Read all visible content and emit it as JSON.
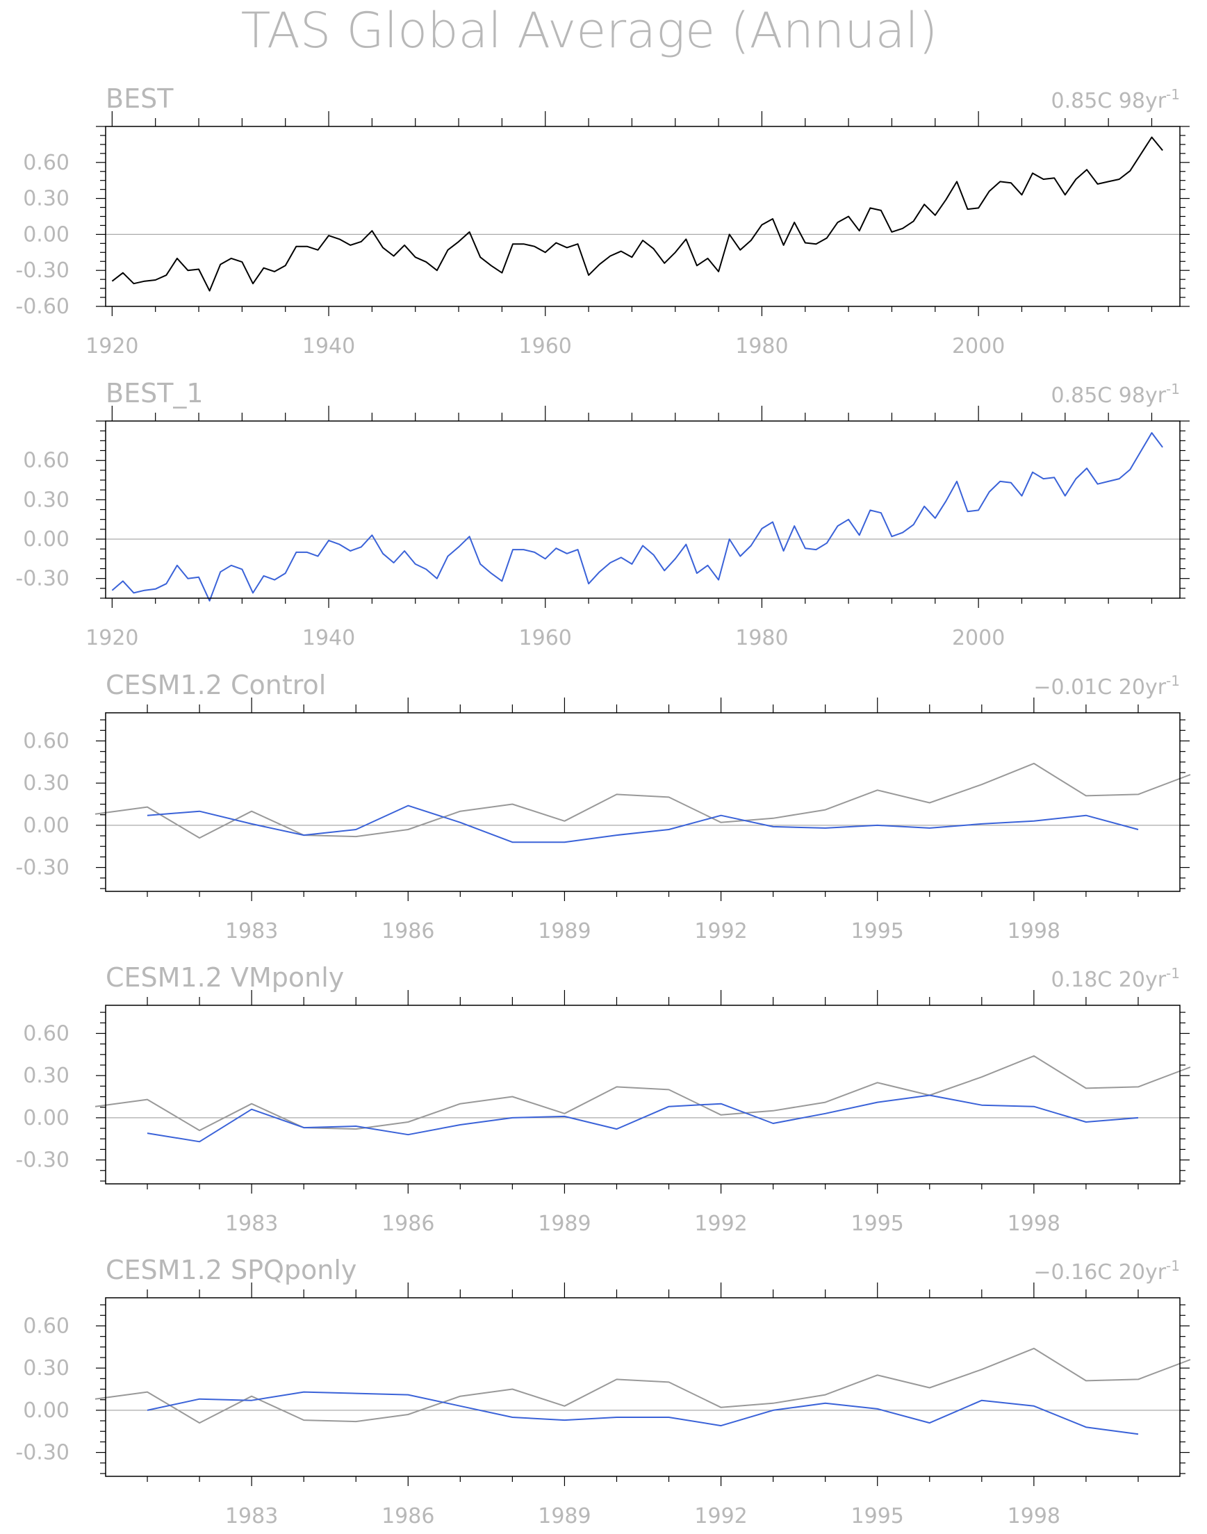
{
  "figure_title": "TAS Global Average (Annual)",
  "colors": {
    "obs_black": "#000000",
    "model_blue": "#3a62d8",
    "obs_reference_gray": "#999999",
    "text_gray": "#b8b8b8",
    "zero_line": "#aaaaaa"
  },
  "chart_data": [
    {
      "type": "line",
      "title": "BEST",
      "trend_label": "0.85C 98yr",
      "trend_exponent": "-1",
      "xlim": [
        1919.4,
        2018.6
      ],
      "ylim": [
        -0.6,
        0.9
      ],
      "yticks": [
        -0.6,
        -0.3,
        0.0,
        0.3,
        0.6
      ],
      "ytick_labels": [
        "-0.60",
        "-0.30",
        "0.00",
        "0.30",
        "0.60"
      ],
      "xticks": [
        1920,
        1940,
        1960,
        1980,
        2000
      ],
      "xtick_labels": [
        "1920",
        "1940",
        "1960",
        "1980",
        "2000"
      ],
      "zero_line": true,
      "series": [
        {
          "color": "#000000",
          "x_start": 1920,
          "values": [
            -0.39,
            -0.32,
            -0.41,
            -0.39,
            -0.38,
            -0.34,
            -0.2,
            -0.3,
            -0.29,
            -0.47,
            -0.25,
            -0.2,
            -0.23,
            -0.41,
            -0.28,
            -0.31,
            -0.26,
            -0.1,
            -0.1,
            -0.13,
            -0.01,
            -0.04,
            -0.09,
            -0.06,
            0.03,
            -0.11,
            -0.18,
            -0.09,
            -0.19,
            -0.23,
            -0.3,
            -0.13,
            -0.06,
            0.02,
            -0.19,
            -0.26,
            -0.32,
            -0.08,
            -0.08,
            -0.1,
            -0.15,
            -0.07,
            -0.11,
            -0.08,
            -0.34,
            -0.25,
            -0.18,
            -0.14,
            -0.19,
            -0.05,
            -0.12,
            -0.24,
            -0.15,
            -0.04,
            -0.26,
            -0.2,
            -0.31,
            0.0,
            -0.13,
            -0.05,
            0.08,
            0.13,
            -0.09,
            0.1,
            -0.07,
            -0.08,
            -0.03,
            0.1,
            0.15,
            0.03,
            0.22,
            0.2,
            0.02,
            0.05,
            0.11,
            0.25,
            0.16,
            0.29,
            0.44,
            0.21,
            0.22,
            0.36,
            0.44,
            0.43,
            0.33,
            0.51,
            0.46,
            0.47,
            0.33,
            0.46,
            0.54,
            0.42,
            0.44,
            0.46,
            0.53,
            0.67,
            0.81,
            0.7
          ]
        }
      ]
    },
    {
      "type": "line",
      "title": "BEST_1",
      "trend_label": "0.85C 98yr",
      "trend_exponent": "-1",
      "xlim": [
        1919.4,
        2018.6
      ],
      "ylim": [
        -0.45,
        0.9
      ],
      "yticks": [
        -0.3,
        0.0,
        0.3,
        0.6
      ],
      "ytick_labels": [
        "-0.30",
        "0.00",
        "0.30",
        "0.60"
      ],
      "xticks": [
        1920,
        1940,
        1960,
        1980,
        2000
      ],
      "xtick_labels": [
        "1920",
        "1940",
        "1960",
        "1980",
        "2000"
      ],
      "zero_line": true,
      "series": [
        {
          "color": "#3a62d8",
          "x_start": 1920,
          "values": [
            -0.39,
            -0.32,
            -0.41,
            -0.39,
            -0.38,
            -0.34,
            -0.2,
            -0.3,
            -0.29,
            -0.47,
            -0.25,
            -0.2,
            -0.23,
            -0.41,
            -0.28,
            -0.31,
            -0.26,
            -0.1,
            -0.1,
            -0.13,
            -0.01,
            -0.04,
            -0.09,
            -0.06,
            0.03,
            -0.11,
            -0.18,
            -0.09,
            -0.19,
            -0.23,
            -0.3,
            -0.13,
            -0.06,
            0.02,
            -0.19,
            -0.26,
            -0.32,
            -0.08,
            -0.08,
            -0.1,
            -0.15,
            -0.07,
            -0.11,
            -0.08,
            -0.34,
            -0.25,
            -0.18,
            -0.14,
            -0.19,
            -0.05,
            -0.12,
            -0.24,
            -0.15,
            -0.04,
            -0.26,
            -0.2,
            -0.31,
            0.0,
            -0.13,
            -0.05,
            0.08,
            0.13,
            -0.09,
            0.1,
            -0.07,
            -0.08,
            -0.03,
            0.1,
            0.15,
            0.03,
            0.22,
            0.2,
            0.02,
            0.05,
            0.11,
            0.25,
            0.16,
            0.29,
            0.44,
            0.21,
            0.22,
            0.36,
            0.44,
            0.43,
            0.33,
            0.51,
            0.46,
            0.47,
            0.33,
            0.46,
            0.54,
            0.42,
            0.44,
            0.46,
            0.53,
            0.67,
            0.81,
            0.7
          ]
        }
      ]
    },
    {
      "type": "line",
      "title": "CESM1.2 Control",
      "trend_label": "−0.01C 20yr",
      "trend_exponent": "-1",
      "xlim": [
        1980.2,
        2000.8
      ],
      "ylim": [
        -0.47,
        0.8
      ],
      "yticks": [
        -0.3,
        0.0,
        0.3,
        0.6
      ],
      "ytick_labels": [
        "-0.30",
        "0.00",
        "0.30",
        "0.60"
      ],
      "xticks": [
        1983,
        1986,
        1989,
        1992,
        1995,
        1998
      ],
      "xtick_labels": [
        "1983",
        "1986",
        "1989",
        "1992",
        "1995",
        "1998"
      ],
      "zero_line": true,
      "series": [
        {
          "color": "#999999",
          "x_start": 1980,
          "values": [
            0.08,
            0.13,
            -0.09,
            0.1,
            -0.07,
            -0.08,
            -0.03,
            0.1,
            0.15,
            0.03,
            0.22,
            0.2,
            0.02,
            0.05,
            0.11,
            0.25,
            0.16,
            0.29,
            0.44,
            0.21,
            0.22,
            0.36
          ]
        },
        {
          "color": "#3a62d8",
          "x_start": 1981,
          "values": [
            0.07,
            0.1,
            0.01,
            -0.07,
            -0.03,
            0.14,
            0.02,
            -0.12,
            -0.12,
            -0.07,
            -0.03,
            0.07,
            -0.01,
            -0.02,
            0.0,
            -0.02,
            0.01,
            0.03,
            0.07,
            -0.03
          ]
        }
      ]
    },
    {
      "type": "line",
      "title": "CESM1.2 VMponly",
      "trend_label": "0.18C 20yr",
      "trend_exponent": "-1",
      "xlim": [
        1980.2,
        2000.8
      ],
      "ylim": [
        -0.47,
        0.8
      ],
      "yticks": [
        -0.3,
        0.0,
        0.3,
        0.6
      ],
      "ytick_labels": [
        "-0.30",
        "0.00",
        "0.30",
        "0.60"
      ],
      "xticks": [
        1983,
        1986,
        1989,
        1992,
        1995,
        1998
      ],
      "xtick_labels": [
        "1983",
        "1986",
        "1989",
        "1992",
        "1995",
        "1998"
      ],
      "zero_line": true,
      "series": [
        {
          "color": "#999999",
          "x_start": 1980,
          "values": [
            0.08,
            0.13,
            -0.09,
            0.1,
            -0.07,
            -0.08,
            -0.03,
            0.1,
            0.15,
            0.03,
            0.22,
            0.2,
            0.02,
            0.05,
            0.11,
            0.25,
            0.16,
            0.29,
            0.44,
            0.21,
            0.22,
            0.36
          ]
        },
        {
          "color": "#3a62d8",
          "x_start": 1981,
          "values": [
            -0.11,
            -0.17,
            0.06,
            -0.07,
            -0.06,
            -0.12,
            -0.05,
            0.0,
            0.01,
            -0.08,
            0.08,
            0.1,
            -0.04,
            0.03,
            0.11,
            0.16,
            0.09,
            0.08,
            -0.03,
            0.0
          ]
        }
      ]
    },
    {
      "type": "line",
      "title": "CESM1.2 SPQponly",
      "trend_label": "−0.16C 20yr",
      "trend_exponent": "-1",
      "xlim": [
        1980.2,
        2000.8
      ],
      "ylim": [
        -0.47,
        0.8
      ],
      "yticks": [
        -0.3,
        0.0,
        0.3,
        0.6
      ],
      "ytick_labels": [
        "-0.30",
        "0.00",
        "0.30",
        "0.60"
      ],
      "xticks": [
        1983,
        1986,
        1989,
        1992,
        1995,
        1998
      ],
      "xtick_labels": [
        "1983",
        "1986",
        "1989",
        "1992",
        "1995",
        "1998"
      ],
      "zero_line": true,
      "series": [
        {
          "color": "#999999",
          "x_start": 1980,
          "values": [
            0.08,
            0.13,
            -0.09,
            0.1,
            -0.07,
            -0.08,
            -0.03,
            0.1,
            0.15,
            0.03,
            0.22,
            0.2,
            0.02,
            0.05,
            0.11,
            0.25,
            0.16,
            0.29,
            0.44,
            0.21,
            0.22,
            0.36
          ]
        },
        {
          "color": "#3a62d8",
          "x_start": 1981,
          "values": [
            0.0,
            0.08,
            0.07,
            0.13,
            0.12,
            0.11,
            0.03,
            -0.05,
            -0.07,
            -0.05,
            -0.05,
            -0.11,
            0.0,
            0.05,
            0.01,
            -0.09,
            0.07,
            0.03,
            -0.12,
            -0.17
          ]
        }
      ]
    }
  ]
}
